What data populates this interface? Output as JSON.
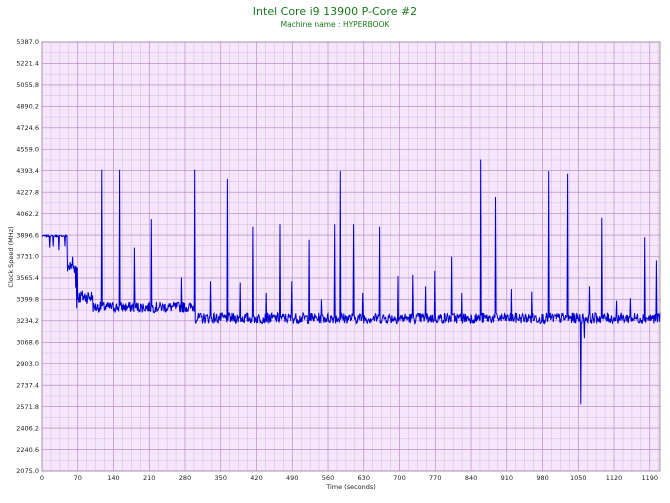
{
  "chart_data": {
    "type": "line",
    "title": "Intel Core i9 13900 P-Core #2",
    "subtitle": "Machine name : HYPERBOOK",
    "xlabel": "Time (seconds)",
    "ylabel": "Clock Speed (MHz)",
    "xlim": [
      0,
      1210
    ],
    "ylim": [
      2075.0,
      5387.0
    ],
    "x_ticks": [
      "0",
      "70",
      "140",
      "210",
      "280",
      "350",
      "420",
      "490",
      "560",
      "630",
      "700",
      "770",
      "840",
      "910",
      "980",
      "1050",
      "1120",
      "1190"
    ],
    "y_ticks": [
      "2075.0",
      "2240.6",
      "2406.2",
      "2571.8",
      "2737.4",
      "2903.0",
      "3068.6",
      "3234.2",
      "3399.8",
      "3565.4",
      "3731.0",
      "3896.6",
      "4062.2",
      "4227.8",
      "4393.4",
      "4559.0",
      "4724.6",
      "4890.2",
      "5055.8",
      "5221.4",
      "5387.0"
    ],
    "grid": true,
    "series": [
      {
        "color": "#0000cc",
        "baseline_segments": [
          {
            "x": [
              0,
              50
            ],
            "y": 3890
          },
          {
            "x": [
              50,
              70
            ],
            "y": 3650
          },
          {
            "x": [
              70,
              100
            ],
            "y": 3420
          },
          {
            "x": [
              100,
              300
            ],
            "y": 3340
          },
          {
            "x": [
              300,
              1210
            ],
            "y": 3255
          }
        ],
        "dips": [
          {
            "x": 15,
            "y": 3800
          },
          {
            "x": 22,
            "y": 3810
          },
          {
            "x": 33,
            "y": 3780
          },
          {
            "x": 45,
            "y": 3810
          },
          {
            "x": 60,
            "y": 3730
          },
          {
            "x": 66,
            "y": 3490
          },
          {
            "x": 68,
            "y": 3330
          },
          {
            "x": 1055,
            "y": 2590
          },
          {
            "x": 1062,
            "y": 3100
          }
        ],
        "spikes": [
          {
            "x": 117,
            "y": 4400
          },
          {
            "x": 152,
            "y": 4400
          },
          {
            "x": 181,
            "y": 3800
          },
          {
            "x": 214,
            "y": 4020
          },
          {
            "x": 273,
            "y": 3570
          },
          {
            "x": 299,
            "y": 4400
          },
          {
            "x": 330,
            "y": 3540
          },
          {
            "x": 363,
            "y": 4330
          },
          {
            "x": 388,
            "y": 3530
          },
          {
            "x": 413,
            "y": 3960
          },
          {
            "x": 439,
            "y": 3450
          },
          {
            "x": 466,
            "y": 3980
          },
          {
            "x": 489,
            "y": 3540
          },
          {
            "x": 523,
            "y": 3860
          },
          {
            "x": 547,
            "y": 3400
          },
          {
            "x": 573,
            "y": 3980
          },
          {
            "x": 584,
            "y": 4390
          },
          {
            "x": 610,
            "y": 3980
          },
          {
            "x": 628,
            "y": 3450
          },
          {
            "x": 661,
            "y": 3960
          },
          {
            "x": 697,
            "y": 3580
          },
          {
            "x": 726,
            "y": 3590
          },
          {
            "x": 751,
            "y": 3500
          },
          {
            "x": 769,
            "y": 3620
          },
          {
            "x": 802,
            "y": 3730
          },
          {
            "x": 822,
            "y": 3450
          },
          {
            "x": 859,
            "y": 4480
          },
          {
            "x": 888,
            "y": 4190
          },
          {
            "x": 919,
            "y": 3480
          },
          {
            "x": 959,
            "y": 3460
          },
          {
            "x": 992,
            "y": 4390
          },
          {
            "x": 1029,
            "y": 4370
          },
          {
            "x": 1072,
            "y": 3500
          },
          {
            "x": 1096,
            "y": 4030
          },
          {
            "x": 1125,
            "y": 3390
          },
          {
            "x": 1152,
            "y": 3410
          },
          {
            "x": 1180,
            "y": 3880
          },
          {
            "x": 1203,
            "y": 3700
          }
        ]
      }
    ]
  }
}
